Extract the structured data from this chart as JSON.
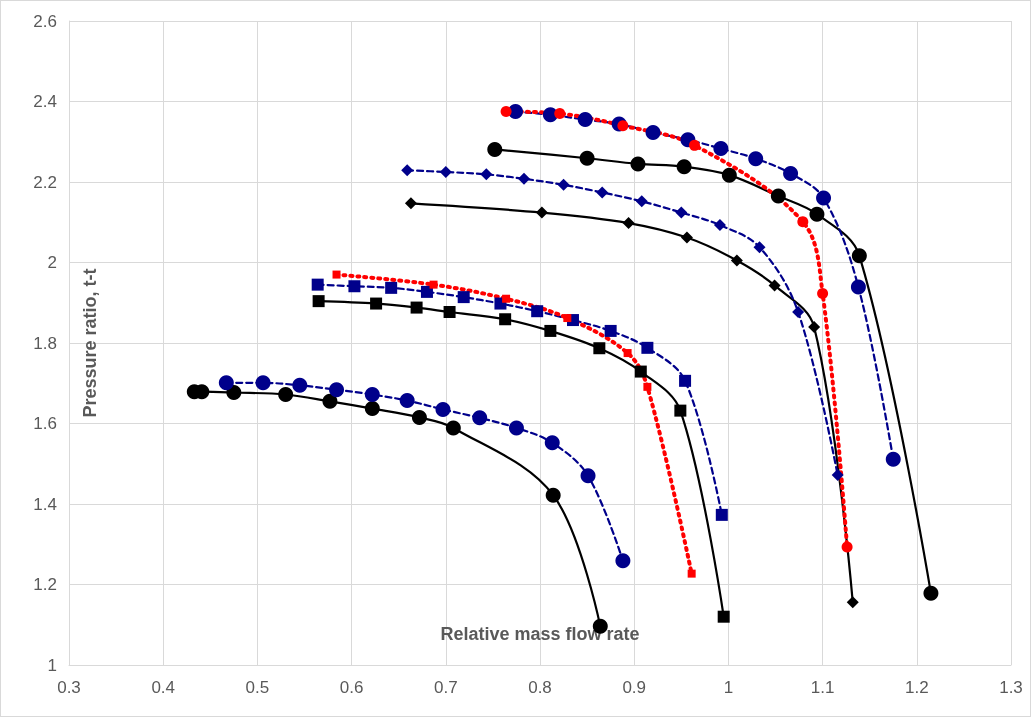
{
  "chart_data": {
    "type": "line",
    "xlabel": "Relative mass flow rate",
    "ylabel": "Pressure ratio, t-t",
    "xlim": [
      0.3,
      1.3
    ],
    "xticks": [
      0.3,
      0.4,
      0.5,
      0.6,
      0.7,
      0.8,
      0.9,
      1,
      1.1,
      1.2,
      1.3
    ],
    "ylim": [
      1,
      2.6
    ],
    "yticks": [
      1,
      1.2,
      1.4,
      1.6,
      1.8,
      2,
      2.2,
      2.4,
      2.6
    ],
    "grid": true,
    "series": [
      {
        "color": "#000000",
        "marker": "circle",
        "line_style": "solid",
        "x": [
          0.433,
          0.441,
          0.475,
          0.53,
          0.577,
          0.622,
          0.672,
          0.708,
          0.814,
          0.864
        ],
        "values": [
          1.679,
          1.679,
          1.677,
          1.672,
          1.655,
          1.637,
          1.615,
          1.589,
          1.422,
          1.096
        ]
      },
      {
        "color": "#00008b",
        "marker": "circle",
        "line_style": "dashed",
        "x": [
          0.467,
          0.506,
          0.545,
          0.584,
          0.622,
          0.659,
          0.697,
          0.736,
          0.775,
          0.813,
          0.851,
          0.888
        ],
        "values": [
          1.701,
          1.701,
          1.695,
          1.684,
          1.672,
          1.657,
          1.635,
          1.614,
          1.589,
          1.552,
          1.47,
          1.259
        ]
      },
      {
        "color": "#000000",
        "marker": "square",
        "line_style": "solid",
        "x": [
          0.565,
          0.626,
          0.669,
          0.704,
          0.763,
          0.811,
          0.863,
          0.907,
          0.949,
          0.995
        ],
        "values": [
          1.904,
          1.898,
          1.888,
          1.877,
          1.859,
          1.83,
          1.787,
          1.729,
          1.632,
          1.12
        ]
      },
      {
        "color": "#00008b",
        "marker": "square",
        "line_style": "dashed",
        "x": [
          0.564,
          0.603,
          0.642,
          0.68,
          0.719,
          0.758,
          0.797,
          0.835,
          0.875,
          0.914,
          0.954,
          0.993
        ],
        "values": [
          1.945,
          1.941,
          1.937,
          1.927,
          1.914,
          1.898,
          1.879,
          1.857,
          1.83,
          1.788,
          1.706,
          1.373
        ]
      },
      {
        "color": "#ff0000",
        "marker": "square",
        "line_style": "dotted",
        "x": [
          0.584,
          0.687,
          0.764,
          0.829,
          0.893,
          0.914,
          0.961
        ],
        "values": [
          1.97,
          1.945,
          1.91,
          1.862,
          1.775,
          1.691,
          1.227
        ]
      },
      {
        "color": "#000000",
        "marker": "diamond",
        "line_style": "solid",
        "x": [
          0.663,
          0.802,
          0.894,
          0.956,
          1.009,
          1.049,
          1.091,
          1.132
        ],
        "values": [
          2.147,
          2.124,
          2.098,
          2.062,
          2.005,
          1.943,
          1.84,
          1.156
        ]
      },
      {
        "color": "#00008b",
        "marker": "diamond",
        "line_style": "dashed",
        "x": [
          0.659,
          0.7,
          0.743,
          0.783,
          0.825,
          0.866,
          0.908,
          0.95,
          0.991,
          1.033,
          1.074,
          1.116
        ],
        "values": [
          2.229,
          2.225,
          2.219,
          2.208,
          2.193,
          2.174,
          2.152,
          2.124,
          2.093,
          2.038,
          1.877,
          1.472
        ]
      },
      {
        "color": "#000000",
        "marker": "circle",
        "line_style": "solid",
        "x": [
          0.752,
          0.85,
          0.904,
          0.953,
          1.001,
          1.053,
          1.094,
          1.139,
          1.215
        ],
        "values": [
          2.281,
          2.259,
          2.245,
          2.238,
          2.217,
          2.165,
          2.12,
          2.017,
          1.178
        ]
      },
      {
        "color": "#00008b",
        "marker": "circle",
        "line_style": "dashed",
        "x": [
          0.774,
          0.811,
          0.848,
          0.884,
          0.92,
          0.957,
          0.992,
          1.029,
          1.066,
          1.101,
          1.138,
          1.175
        ],
        "values": [
          2.375,
          2.367,
          2.355,
          2.344,
          2.323,
          2.305,
          2.283,
          2.258,
          2.221,
          2.16,
          1.939,
          1.511
        ]
      },
      {
        "color": "#ff0000",
        "marker": "circle",
        "line_style": "dotted",
        "x": [
          0.764,
          0.821,
          0.888,
          0.964,
          1.079,
          1.1,
          1.126
        ],
        "values": [
          2.375,
          2.37,
          2.34,
          2.291,
          2.101,
          1.923,
          1.293
        ]
      }
    ]
  }
}
